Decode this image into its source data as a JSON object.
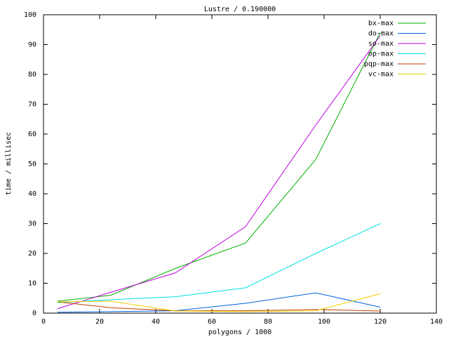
{
  "chart_data": {
    "type": "line",
    "title": "Lustre / 0.190000",
    "x_label": "polygons / 1000",
    "y_label": "time / millisec",
    "x": [
      5,
      24,
      47,
      72,
      97,
      120
    ],
    "xlim": [
      0,
      140
    ],
    "xticks": [
      0,
      20,
      40,
      60,
      80,
      100,
      120,
      140
    ],
    "ylim": [
      0,
      100
    ],
    "yticks": [
      0,
      10,
      20,
      30,
      40,
      50,
      60,
      70,
      80,
      90,
      100
    ],
    "legend": "top-right",
    "series": [
      {
        "name": "bx-max",
        "color": "#00b000",
        "values": [
          4,
          6,
          15,
          23.5,
          51.5,
          94
        ]
      },
      {
        "name": "do-max",
        "color": "#0060e0",
        "values": [
          0.3,
          0.5,
          0.8,
          3.3,
          6.8,
          2
        ]
      },
      {
        "name": "so-max",
        "color": "#c000e0",
        "values": [
          1.5,
          7,
          13.5,
          29,
          63,
          93
        ]
      },
      {
        "name": "op-max",
        "color": "#00e0e0",
        "values": [
          3.5,
          4.5,
          5.5,
          8.5,
          20,
          30
        ]
      },
      {
        "name": "pqp-max",
        "color": "#c04000",
        "values": [
          3.8,
          1.8,
          0.8,
          0.8,
          1.2,
          0.7
        ]
      },
      {
        "name": "vc-max",
        "color": "#f0d000",
        "values": [
          3.8,
          4,
          0.7,
          0.5,
          0.8,
          6.5
        ]
      }
    ]
  }
}
